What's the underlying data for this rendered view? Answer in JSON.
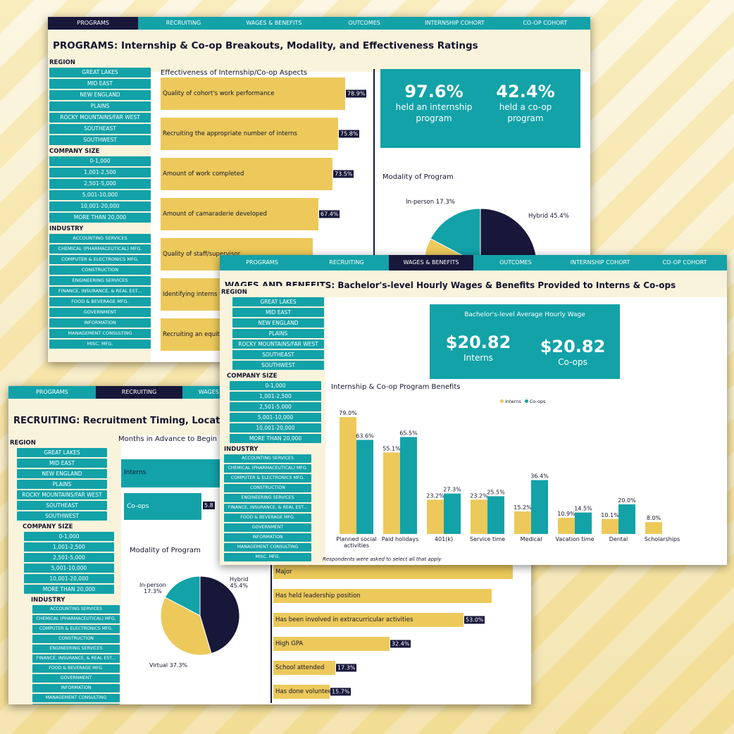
{
  "tabs": {
    "programs": "PROGRAMS",
    "recruiting": "RECRUITING",
    "wages": "WAGES & BENEFITS",
    "wages_short": "WAGES & BENEFITS",
    "outcomes": "OUTCOMES",
    "internship": "INTERNSHIP COHORT",
    "coop": "CO-OP COHORT"
  },
  "filters": {
    "region_label": "REGION",
    "regions": [
      "GREAT LAKES",
      "MID EAST",
      "NEW ENGLAND",
      "PLAINS",
      "ROCKY MOUNTAINS/FAR WEST",
      "SOUTHEAST",
      "SOUTHWEST"
    ],
    "size_label": "COMPANY SIZE",
    "sizes": [
      "0-1,000",
      "1,001-2,500",
      "2,501-5,000",
      "5,001-10,000",
      "10,001-20,000",
      "MORE THAN 20,000"
    ],
    "industry_label": "INDUSTRY",
    "industries": [
      "ACCOUNTING SERVICES",
      "CHEMICAL (PHARMACEUTICAL) MFG.",
      "COMPUTER & ELECTRONICS MFG.",
      "CONSTRUCTION",
      "ENGINEERING SERVICES",
      "FINANCE, INSURANCE, & REAL EST...",
      "FOOD & BEVERAGE MFG.",
      "GOVERNMENT",
      "INFORMATION",
      "MANAGEMENT CONSULTING",
      "MISC. MFG."
    ]
  },
  "programs": {
    "title": "PROGRAMS: Internship & Co-op Breakouts, Modality, and Effectiveness Ratings",
    "effectiveness_title": "Effectiveness of Internship/Co-op Aspects",
    "stat1_value": "97.6%",
    "stat1_label_1": "held an internship",
    "stat1_label_2": "program",
    "stat2_value": "42.4%",
    "stat2_label_1": "held a co-op",
    "stat2_label_2": "program",
    "modality_title": "Modality of Program",
    "inperson_label": "In-person 17.3%",
    "hybrid_label": "Hybrid 45.4%"
  },
  "recruiting": {
    "title": "RECRUITING:  Recruitment Timing, Location, & Dec",
    "months_title": "Months in Advance to Begin Recrui",
    "interns_label": "Interns",
    "coops_label": "Co-ops",
    "coops_value": "5.8",
    "modality_title": "Modality of Program",
    "inperson_label": "In-person",
    "inperson_value": "17.3%",
    "hybrid_label": "Hybrid",
    "hybrid_value": "45.4%",
    "virtual_label": "Virtual 37.3%"
  },
  "wages": {
    "title": "WAGES AND BENEFITS: Bachelor's-level Hourly Wages & Benefits Provided to Interns & Co-ops",
    "wage_title": "Bachelor's-level Average Hourly Wage",
    "interns_wage": "$20.82",
    "interns_label": "Interns",
    "coops_wage": "$20.82",
    "coops_label": "Co-ops",
    "benefits_title": "Internship & Co-op Program Benefits",
    "legend_interns": "Interns",
    "legend_coops": "Co-ops",
    "footnote": "Respondents were asked to select all that apply"
  },
  "chart_data": [
    {
      "type": "bar",
      "title": "Effectiveness of Internship/Co-op Aspects",
      "orientation": "horizontal",
      "categories": [
        "Quality of cohort's work performance",
        "Recruiting the appropriate number of interns",
        "Amount of work completed",
        "Amount of camaraderie developed",
        "Quality of staff/supervisor",
        "Identifying interns to co",
        "Recruiting an equitable"
      ],
      "values": [
        78.9,
        75.8,
        73.5,
        67.4,
        null,
        null,
        null
      ],
      "labels": [
        "78.9%",
        "75.8%",
        "73.5%",
        "67.4%",
        "",
        "",
        ""
      ]
    },
    {
      "type": "pie",
      "title": "Modality of Program",
      "categories": [
        "Hybrid",
        "Virtual",
        "In-person"
      ],
      "values": [
        45.4,
        37.3,
        17.3
      ]
    },
    {
      "type": "bar",
      "title": "Internship & Co-op Program Benefits",
      "categories": [
        "Planned social activities",
        "Paid holidays",
        "401(k)",
        "Service time",
        "Medical",
        "Vacation time",
        "Dental",
        "Scholarships"
      ],
      "series": [
        {
          "name": "Interns",
          "values": [
            79.0,
            55.1,
            23.2,
            23.2,
            15.2,
            10.9,
            10.1,
            8.0
          ]
        },
        {
          "name": "Co-ops",
          "values": [
            63.6,
            65.5,
            27.3,
            25.5,
            36.4,
            14.5,
            20.0,
            null
          ]
        }
      ],
      "ylim": [
        0,
        80
      ],
      "grid": false,
      "legend": "top-center",
      "category_lines": [
        [
          "Planned social",
          "activities"
        ],
        [
          "Paid holidays"
        ],
        [
          "401(k)"
        ],
        [
          "Service time"
        ],
        [
          "Medical"
        ],
        [
          "Vacation time"
        ],
        [
          "Dental"
        ],
        [
          "Scholarships"
        ]
      ]
    },
    {
      "type": "bar",
      "orientation": "horizontal",
      "categories": [
        "Major",
        "Has held leadership position",
        "Has been involved in extracurricular activities",
        "High GPA",
        "School attended",
        "Has done volunteer wo"
      ],
      "values": [
        null,
        null,
        53.0,
        32.4,
        17.3,
        15.7
      ],
      "labels": [
        "",
        "",
        "53.0%",
        "32.4%",
        "17.3%",
        "15.7%"
      ]
    }
  ],
  "colors": {
    "teal": "#12a2a8",
    "navy": "#17173a",
    "gold": "#ecc95a",
    "cream": "#faf3dc"
  }
}
